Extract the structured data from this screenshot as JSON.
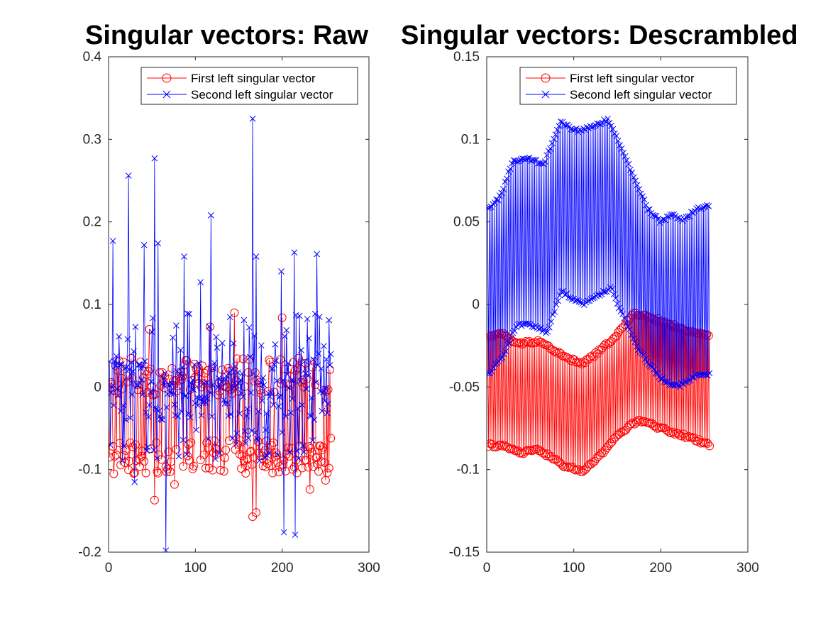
{
  "figure": {
    "title_left": "Singular vectors: Raw",
    "title_right": "Singular vectors: Descrambled"
  },
  "chart_data": [
    {
      "type": "line",
      "title": "Singular vectors: Raw",
      "xlabel": "",
      "ylabel": "",
      "xlim": [
        0,
        300
      ],
      "ylim": [
        -0.2,
        0.4
      ],
      "xticks": [
        0,
        100,
        200,
        300
      ],
      "yticks": [
        -0.2,
        -0.1,
        0,
        0.1,
        0.2,
        0.3,
        0.4
      ],
      "ytick_labels": [
        "-0.2",
        "-0.1",
        "0",
        "0.1",
        "0.2",
        "0.3",
        "0.4"
      ],
      "grid": false,
      "legend_position": "top-right",
      "pattern": "scrambled-noise",
      "series": [
        {
          "name": "First left singular vector",
          "color": "#ff0000",
          "marker": "circle",
          "n_points": 256,
          "range": [
            -0.157,
            0.09
          ],
          "anchor_points": [
            {
              "x": 1,
              "y": -0.085
            },
            {
              "x": 6,
              "y": -0.105
            },
            {
              "x": 47,
              "y": 0.07
            },
            {
              "x": 53,
              "y": -0.137
            },
            {
              "x": 76,
              "y": -0.118
            },
            {
              "x": 117,
              "y": 0.073
            },
            {
              "x": 145,
              "y": 0.09
            },
            {
              "x": 166,
              "y": -0.157
            },
            {
              "x": 170,
              "y": -0.152
            },
            {
              "x": 200,
              "y": 0.084
            },
            {
              "x": 232,
              "y": -0.124
            },
            {
              "x": 250,
              "y": -0.113
            },
            {
              "x": 256,
              "y": -0.062
            }
          ]
        },
        {
          "name": "Second left singular vector",
          "color": "#0000ff",
          "marker": "x",
          "n_points": 256,
          "range": [
            -0.198,
            0.325
          ],
          "anchor_points": [
            {
              "x": 5,
              "y": 0.177
            },
            {
              "x": 23,
              "y": 0.256
            },
            {
              "x": 30,
              "y": -0.115
            },
            {
              "x": 41,
              "y": 0.172
            },
            {
              "x": 53,
              "y": 0.277
            },
            {
              "x": 57,
              "y": 0.174
            },
            {
              "x": 66,
              "y": -0.198
            },
            {
              "x": 87,
              "y": 0.158
            },
            {
              "x": 106,
              "y": 0.127
            },
            {
              "x": 118,
              "y": 0.208
            },
            {
              "x": 166,
              "y": 0.325
            },
            {
              "x": 170,
              "y": 0.158
            },
            {
              "x": 199,
              "y": 0.14
            },
            {
              "x": 202,
              "y": -0.176
            },
            {
              "x": 214,
              "y": 0.163
            },
            {
              "x": 215,
              "y": -0.179
            },
            {
              "x": 240,
              "y": 0.161
            },
            {
              "x": 256,
              "y": 0.04
            }
          ]
        }
      ]
    },
    {
      "type": "line",
      "title": "Singular vectors: Descrambled",
      "xlabel": "",
      "ylabel": "",
      "xlim": [
        0,
        300
      ],
      "ylim": [
        -0.15,
        0.15
      ],
      "xticks": [
        0,
        100,
        200,
        300
      ],
      "yticks": [
        -0.15,
        -0.1,
        -0.05,
        0,
        0.05,
        0.1,
        0.15
      ],
      "ytick_labels": [
        "-0.15",
        "-0.1",
        "-0.05",
        "0",
        "0.05",
        "0.1",
        "0.15"
      ],
      "grid": false,
      "legend_position": "top-right",
      "pattern": "alternating-envelope",
      "series": [
        {
          "name": "First left singular vector",
          "color": "#ff0000",
          "marker": "circle",
          "n_points": 256,
          "upper_envelope": [
            {
              "x": 1,
              "y": -0.019
            },
            {
              "x": 20,
              "y": -0.018
            },
            {
              "x": 35,
              "y": -0.024
            },
            {
              "x": 60,
              "y": -0.022
            },
            {
              "x": 90,
              "y": -0.032
            },
            {
              "x": 110,
              "y": -0.036
            },
            {
              "x": 130,
              "y": -0.028
            },
            {
              "x": 150,
              "y": -0.018
            },
            {
              "x": 170,
              "y": -0.005
            },
            {
              "x": 200,
              "y": -0.01
            },
            {
              "x": 235,
              "y": -0.017
            },
            {
              "x": 256,
              "y": -0.019
            }
          ],
          "lower_envelope": [
            {
              "x": 1,
              "y": -0.085
            },
            {
              "x": 20,
              "y": -0.086
            },
            {
              "x": 40,
              "y": -0.09
            },
            {
              "x": 60,
              "y": -0.088
            },
            {
              "x": 90,
              "y": -0.098
            },
            {
              "x": 110,
              "y": -0.101
            },
            {
              "x": 130,
              "y": -0.092
            },
            {
              "x": 150,
              "y": -0.079
            },
            {
              "x": 175,
              "y": -0.07
            },
            {
              "x": 200,
              "y": -0.075
            },
            {
              "x": 230,
              "y": -0.08
            },
            {
              "x": 256,
              "y": -0.085
            }
          ]
        },
        {
          "name": "Second left singular vector",
          "color": "#0000ff",
          "marker": "x",
          "n_points": 256,
          "upper_envelope": [
            {
              "x": 1,
              "y": 0.058
            },
            {
              "x": 15,
              "y": 0.065
            },
            {
              "x": 30,
              "y": 0.087
            },
            {
              "x": 50,
              "y": 0.088
            },
            {
              "x": 65,
              "y": 0.085
            },
            {
              "x": 85,
              "y": 0.11
            },
            {
              "x": 105,
              "y": 0.105
            },
            {
              "x": 120,
              "y": 0.108
            },
            {
              "x": 140,
              "y": 0.112
            },
            {
              "x": 160,
              "y": 0.088
            },
            {
              "x": 185,
              "y": 0.058
            },
            {
              "x": 200,
              "y": 0.05
            },
            {
              "x": 215,
              "y": 0.055
            },
            {
              "x": 225,
              "y": 0.05
            },
            {
              "x": 240,
              "y": 0.058
            },
            {
              "x": 256,
              "y": 0.06
            }
          ],
          "lower_envelope": [
            {
              "x": 1,
              "y": -0.043
            },
            {
              "x": 20,
              "y": -0.03
            },
            {
              "x": 35,
              "y": -0.012
            },
            {
              "x": 55,
              "y": -0.013
            },
            {
              "x": 70,
              "y": -0.017
            },
            {
              "x": 85,
              "y": 0.008
            },
            {
              "x": 110,
              "y": 0.0
            },
            {
              "x": 125,
              "y": 0.005
            },
            {
              "x": 143,
              "y": 0.01
            },
            {
              "x": 155,
              "y": -0.005
            },
            {
              "x": 175,
              "y": -0.028
            },
            {
              "x": 200,
              "y": -0.045
            },
            {
              "x": 220,
              "y": -0.05
            },
            {
              "x": 240,
              "y": -0.043
            },
            {
              "x": 256,
              "y": -0.042
            }
          ]
        }
      ]
    }
  ]
}
